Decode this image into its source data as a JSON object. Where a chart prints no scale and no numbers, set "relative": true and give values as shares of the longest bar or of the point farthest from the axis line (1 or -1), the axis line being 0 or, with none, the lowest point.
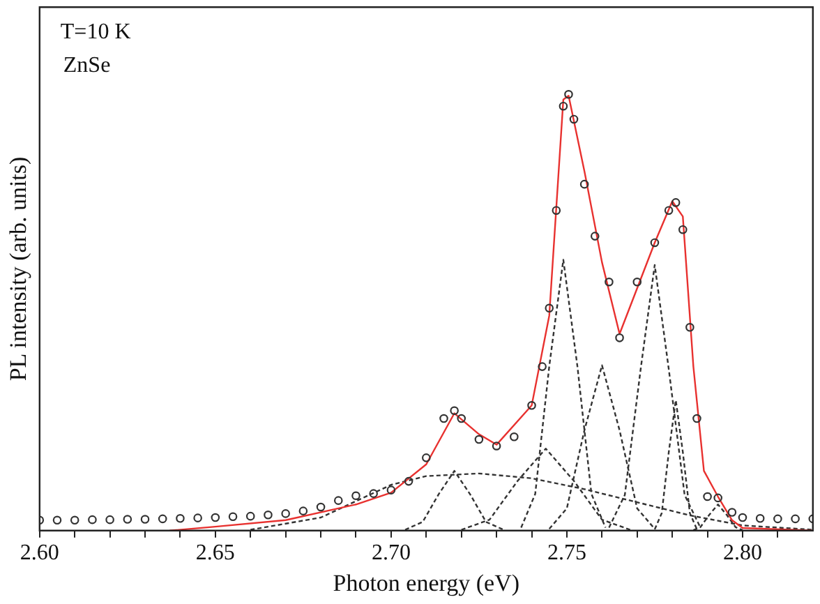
{
  "chart_data": {
    "type": "line",
    "relative": true,
    "xlabel": "Photon energy (eV)",
    "ylabel": "PL intensity (arb. units)",
    "annotations": [
      "T=10 K",
      "ZnSe"
    ],
    "xlim": [
      2.6,
      2.82
    ],
    "xticks": [
      {
        "value": 2.6,
        "label": "2.60"
      },
      {
        "value": 2.61,
        "label": null
      },
      {
        "value": 2.62,
        "label": null
      },
      {
        "value": 2.63,
        "label": null
      },
      {
        "value": 2.64,
        "label": null
      },
      {
        "value": 2.65,
        "label": "2.65"
      },
      {
        "value": 2.66,
        "label": null
      },
      {
        "value": 2.67,
        "label": null
      },
      {
        "value": 2.68,
        "label": null
      },
      {
        "value": 2.69,
        "label": null
      },
      {
        "value": 2.7,
        "label": "2.70"
      },
      {
        "value": 2.71,
        "label": null
      },
      {
        "value": 2.72,
        "label": null
      },
      {
        "value": 2.73,
        "label": null
      },
      {
        "value": 2.74,
        "label": null
      },
      {
        "value": 2.75,
        "label": "2.75"
      },
      {
        "value": 2.76,
        "label": null
      },
      {
        "value": 2.77,
        "label": null
      },
      {
        "value": 2.78,
        "label": null
      },
      {
        "value": 2.79,
        "label": null
      },
      {
        "value": 2.8,
        "label": "2.80"
      },
      {
        "value": 2.81,
        "label": null
      }
    ],
    "grid": false,
    "legend": false,
    "series": [
      {
        "type": "scatter",
        "color": "#333333",
        "marker": "circle",
        "x": [
          2.6,
          2.605,
          2.61,
          2.615,
          2.62,
          2.625,
          2.63,
          2.635,
          2.64,
          2.645,
          2.65,
          2.655,
          2.66,
          2.665,
          2.67,
          2.675,
          2.68,
          2.685,
          2.69,
          2.695,
          2.7,
          2.705,
          2.71,
          2.715,
          2.718,
          2.72,
          2.725,
          2.73,
          2.735,
          2.74,
          2.743,
          2.745,
          2.747,
          2.749,
          2.7505,
          2.752,
          2.755,
          2.758,
          2.762,
          2.765,
          2.77,
          2.775,
          2.779,
          2.781,
          2.783,
          2.785,
          2.787,
          2.79,
          2.793,
          2.797,
          2.8,
          2.805,
          2.81,
          2.815,
          2.82
        ],
        "values": [
          0.024,
          0.024,
          0.024,
          0.025,
          0.025,
          0.026,
          0.026,
          0.027,
          0.028,
          0.029,
          0.03,
          0.032,
          0.033,
          0.036,
          0.039,
          0.045,
          0.054,
          0.069,
          0.08,
          0.085,
          0.093,
          0.113,
          0.167,
          0.257,
          0.275,
          0.257,
          0.209,
          0.194,
          0.215,
          0.287,
          0.376,
          0.51,
          0.734,
          0.973,
          1.0,
          0.943,
          0.794,
          0.675,
          0.57,
          0.442,
          0.57,
          0.66,
          0.734,
          0.752,
          0.69,
          0.466,
          0.257,
          0.078,
          0.075,
          0.042,
          0.03,
          0.028,
          0.027,
          0.027,
          0.027
        ]
      },
      {
        "color": "#e8312f",
        "marker": "none",
        "line_style": "solid",
        "x": [
          2.637,
          2.65,
          2.67,
          2.69,
          2.7,
          2.71,
          2.718,
          2.725,
          2.73,
          2.74,
          2.745,
          2.749,
          2.7505,
          2.755,
          2.76,
          2.765,
          2.775,
          2.78,
          2.783,
          2.786,
          2.789,
          2.793,
          2.797,
          2.8,
          2.82
        ],
        "values": [
          0,
          0.009,
          0.024,
          0.06,
          0.087,
          0.152,
          0.269,
          0.221,
          0.197,
          0.287,
          0.493,
          0.988,
          0.997,
          0.824,
          0.615,
          0.451,
          0.66,
          0.755,
          0.72,
          0.376,
          0.137,
          0.078,
          0.024,
          0.006,
          0
        ]
      },
      {
        "color": "#333333",
        "marker": "none",
        "line_style": "dashed",
        "x": [
          2.66,
          2.68,
          2.7,
          2.71,
          2.725,
          2.74,
          2.755,
          2.77,
          2.785,
          2.8,
          2.82
        ],
        "values": [
          0.002,
          0.03,
          0.105,
          0.125,
          0.131,
          0.12,
          0.095,
          0.065,
          0.035,
          0.012,
          0.002
        ]
      },
      {
        "color": "#333333",
        "marker": "none",
        "line_style": "dashed",
        "x": [
          2.704,
          2.709,
          2.7135,
          2.718,
          2.7225,
          2.727,
          2.732
        ],
        "values": [
          0.002,
          0.02,
          0.083,
          0.137,
          0.083,
          0.02,
          0.002
        ]
      },
      {
        "color": "#333333",
        "marker": "none",
        "line_style": "dashed",
        "x": [
          2.72,
          2.728,
          2.736,
          2.744,
          2.752,
          2.76,
          2.768
        ],
        "values": [
          0.002,
          0.025,
          0.114,
          0.188,
          0.114,
          0.025,
          0.002
        ]
      },
      {
        "color": "#333333",
        "marker": "none",
        "line_style": "dashed",
        "x": [
          2.737,
          2.741,
          2.745,
          2.749,
          2.753,
          2.757,
          2.761
        ],
        "values": [
          0.007,
          0.084,
          0.377,
          0.621,
          0.377,
          0.084,
          0.007
        ]
      },
      {
        "color": "#333333",
        "marker": "none",
        "line_style": "dashed",
        "x": [
          2.745,
          2.75,
          2.755,
          2.76,
          2.765,
          2.77,
          2.775
        ],
        "values": [
          0.004,
          0.051,
          0.23,
          0.379,
          0.23,
          0.051,
          0.004
        ]
      },
      {
        "color": "#333333",
        "marker": "none",
        "line_style": "dashed",
        "x": [
          2.762,
          2.7665,
          2.771,
          2.775,
          2.779,
          2.7835,
          2.788
        ],
        "values": [
          0.007,
          0.082,
          0.37,
          0.609,
          0.37,
          0.082,
          0.007
        ]
      },
      {
        "color": "#333333",
        "marker": "none",
        "line_style": "dashed",
        "x": [
          2.775,
          2.777,
          2.779,
          2.781,
          2.783,
          2.785,
          2.787
        ],
        "values": [
          0.003,
          0.04,
          0.18,
          0.299,
          0.18,
          0.04,
          0.003
        ]
      },
      {
        "color": "#333333",
        "marker": "none",
        "line_style": "dashed",
        "x": [
          2.786,
          2.788,
          2.7905,
          2.793,
          2.7955,
          2.798,
          2.8
        ],
        "values": [
          0.001,
          0.008,
          0.036,
          0.06,
          0.036,
          0.008,
          0.001
        ]
      }
    ]
  }
}
